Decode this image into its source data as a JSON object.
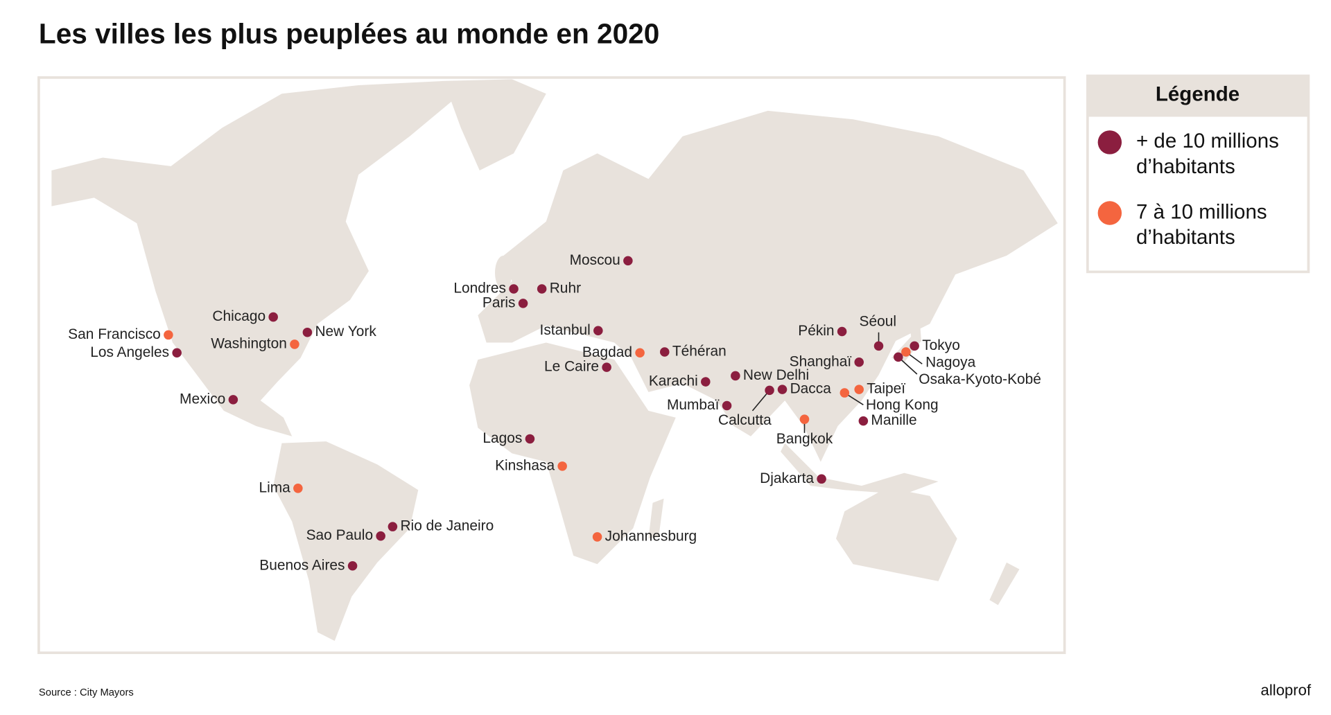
{
  "title": "Les villes les plus peuplées au monde en 2020",
  "legend": {
    "title": "Légende",
    "groups": [
      {
        "label": [
          "+ de 10 millions",
          "d’habitants"
        ],
        "color": "#8b1e3f",
        "cities": [
          "Chicago",
          "New York",
          "Los Angeles",
          "Mexico",
          "Rio de Janeiro",
          "Sao Paulo",
          "Buenos Aires",
          "Londres",
          "Paris",
          "Ruhr",
          "Moscou",
          "Istanbul",
          "Le Caire",
          "Téhéran",
          "Lagos",
          "Karachi",
          "New Delhi",
          "Mumbaï",
          "Calcutta",
          "Dacca",
          "Pékin",
          "Séoul",
          "Shanghaï",
          "Tokyo",
          "Osaka-Kyoto-Kobé",
          "Manille",
          "Djakarta"
        ]
      },
      {
        "label": [
          "7 à 10 millions",
          "d’habitants"
        ],
        "color": "#f4653f",
        "cities": [
          "San Francisco",
          "Washington",
          "Lima",
          "Bagdad",
          "Kinshasa",
          "Johannesburg",
          "Taipeï",
          "Hong Kong",
          "Bangkok",
          "Nagoya"
        ]
      }
    ]
  },
  "source": "Source : City Mayors",
  "brand": "alloprof"
}
